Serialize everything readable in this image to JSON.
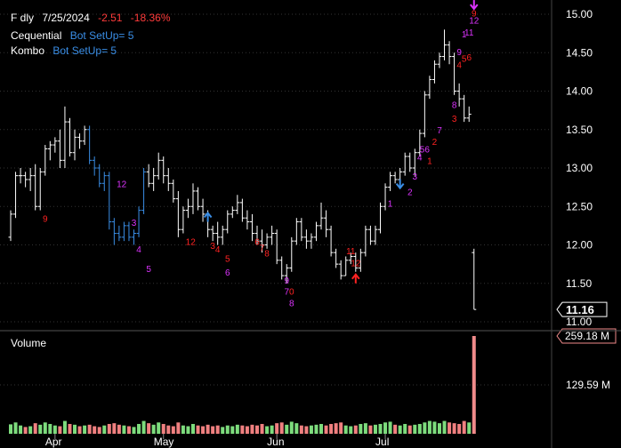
{
  "header": {
    "symbol": "F dly",
    "date": "7/25/2024",
    "change": "-2.51",
    "change_pct": "-18.36%",
    "line2_label": "Cequential",
    "line2_value": "Bot SetUp=  5",
    "line3_label": "Kombo",
    "line3_value": "Bot SetUp=  5"
  },
  "colors": {
    "background": "#000000",
    "text": "#ffffff",
    "down": "#ff3b3b",
    "indicator": "#3a8ee6",
    "magenta": "#dd33ff",
    "red_count": "#ff2222",
    "volume_up": "#7ddc7d",
    "volume_down": "#f08080",
    "volume_last": "#f08a8a"
  },
  "chart_data": {
    "type": "ohlc",
    "price_axis": {
      "ticks": [
        "15.00",
        "14.50",
        "14.00",
        "13.50",
        "13.00",
        "12.50",
        "12.00",
        "11.50",
        "11.00"
      ],
      "ylim": [
        11.0,
        15.0
      ]
    },
    "last_price_label": "11.16",
    "volume_label": "Volume",
    "volume_axis": {
      "ticks": [
        "129.59 M"
      ],
      "last_label": "259.18 M"
    },
    "x_labels": [
      "Apr",
      "May",
      "Jun",
      "Jul"
    ],
    "bars": [
      [
        12.1,
        12.45,
        12.05,
        12.4
      ],
      [
        12.4,
        12.95,
        12.35,
        12.9
      ],
      [
        12.9,
        13.0,
        12.8,
        12.9
      ],
      [
        12.9,
        12.95,
        12.75,
        12.85
      ],
      [
        12.85,
        13.0,
        12.7,
        12.9
      ],
      [
        12.9,
        13.05,
        12.45,
        12.5
      ],
      [
        12.5,
        13.0,
        12.45,
        12.95
      ],
      [
        12.95,
        13.3,
        12.9,
        13.25
      ],
      [
        13.25,
        13.35,
        13.1,
        13.3
      ],
      [
        13.3,
        13.4,
        13.2,
        13.35
      ],
      [
        13.35,
        13.5,
        13.0,
        13.1
      ],
      [
        13.1,
        13.8,
        13.0,
        13.6
      ],
      [
        13.6,
        13.65,
        13.15,
        13.2
      ],
      [
        13.2,
        13.5,
        13.1,
        13.4
      ],
      [
        13.4,
        13.45,
        13.25,
        13.35
      ],
      [
        13.35,
        13.55,
        13.3,
        13.5
      ],
      [
        13.5,
        13.55,
        13.05,
        13.1
      ],
      [
        13.1,
        13.15,
        12.9,
        13.0
      ],
      [
        13.0,
        13.05,
        12.75,
        12.8
      ],
      [
        12.8,
        12.95,
        12.7,
        12.9
      ],
      [
        12.9,
        12.95,
        12.2,
        12.3
      ],
      [
        12.3,
        12.35,
        12.0,
        12.15
      ],
      [
        12.15,
        12.25,
        12.05,
        12.1
      ],
      [
        12.1,
        12.3,
        12.05,
        12.25
      ],
      [
        12.25,
        12.3,
        12.05,
        12.1
      ],
      [
        12.1,
        12.2,
        12.0,
        12.15
      ],
      [
        12.15,
        12.5,
        12.1,
        12.45
      ],
      [
        12.45,
        13.0,
        12.4,
        12.95
      ],
      [
        12.95,
        13.05,
        12.75,
        12.8
      ],
      [
        12.8,
        13.0,
        12.7,
        12.9
      ],
      [
        12.9,
        13.2,
        12.85,
        13.1
      ],
      [
        13.1,
        13.15,
        12.8,
        12.9
      ],
      [
        12.9,
        13.0,
        12.7,
        12.8
      ],
      [
        12.8,
        12.85,
        12.55,
        12.6
      ],
      [
        12.6,
        12.7,
        12.1,
        12.2
      ],
      [
        12.2,
        12.5,
        12.15,
        12.45
      ],
      [
        12.45,
        12.6,
        12.35,
        12.5
      ],
      [
        12.5,
        12.8,
        12.4,
        12.7
      ],
      [
        12.7,
        12.75,
        12.45,
        12.5
      ],
      [
        12.5,
        12.6,
        12.3,
        12.4
      ],
      [
        12.4,
        12.45,
        12.1,
        12.2
      ],
      [
        12.2,
        12.25,
        12.05,
        12.15
      ],
      [
        12.15,
        12.3,
        12.0,
        12.1
      ],
      [
        12.1,
        12.25,
        12.0,
        12.2
      ],
      [
        12.2,
        12.45,
        12.15,
        12.4
      ],
      [
        12.4,
        12.5,
        12.35,
        12.45
      ],
      [
        12.45,
        12.65,
        12.4,
        12.55
      ],
      [
        12.55,
        12.6,
        12.3,
        12.35
      ],
      [
        12.35,
        12.45,
        12.2,
        12.3
      ],
      [
        12.3,
        12.4,
        12.05,
        12.15
      ],
      [
        12.15,
        12.25,
        12.0,
        12.05
      ],
      [
        12.05,
        12.2,
        11.9,
        12.0
      ],
      [
        12.0,
        12.15,
        11.95,
        12.1
      ],
      [
        12.1,
        12.25,
        12.0,
        12.15
      ],
      [
        12.15,
        12.2,
        11.75,
        11.8
      ],
      [
        11.8,
        11.85,
        11.55,
        11.6
      ],
      [
        11.6,
        11.75,
        11.5,
        11.7
      ],
      [
        11.7,
        12.1,
        11.65,
        12.05
      ],
      [
        12.05,
        12.35,
        12.0,
        12.3
      ],
      [
        12.3,
        12.35,
        12.05,
        12.1
      ],
      [
        12.1,
        12.2,
        11.95,
        12.05
      ],
      [
        12.05,
        12.15,
        11.95,
        12.1
      ],
      [
        12.1,
        12.3,
        12.05,
        12.25
      ],
      [
        12.25,
        12.55,
        12.2,
        12.35
      ],
      [
        12.35,
        12.45,
        12.1,
        12.2
      ],
      [
        12.2,
        12.25,
        11.85,
        11.9
      ],
      [
        11.9,
        11.95,
        11.7,
        11.75
      ],
      [
        11.75,
        11.8,
        11.55,
        11.6
      ],
      [
        11.6,
        11.85,
        11.6,
        11.8
      ],
      [
        11.8,
        11.9,
        11.75,
        11.85
      ],
      [
        11.85,
        11.9,
        11.65,
        11.7
      ],
      [
        11.7,
        11.95,
        11.65,
        11.9
      ],
      [
        11.9,
        12.25,
        11.85,
        12.2
      ],
      [
        12.2,
        12.25,
        12.0,
        12.05
      ],
      [
        12.05,
        12.25,
        12.0,
        12.2
      ],
      [
        12.2,
        12.55,
        12.15,
        12.5
      ],
      [
        12.5,
        12.8,
        12.45,
        12.75
      ],
      [
        12.75,
        12.95,
        12.7,
        12.9
      ],
      [
        12.9,
        12.95,
        12.8,
        12.85
      ],
      [
        12.85,
        13.0,
        12.8,
        12.95
      ],
      [
        12.95,
        13.2,
        12.9,
        13.15
      ],
      [
        13.15,
        13.2,
        12.95,
        13.0
      ],
      [
        13.0,
        13.25,
        12.9,
        13.2
      ],
      [
        13.2,
        13.5,
        13.15,
        13.45
      ],
      [
        13.45,
        14.0,
        13.4,
        13.95
      ],
      [
        13.95,
        14.2,
        13.9,
        14.15
      ],
      [
        14.15,
        14.4,
        14.1,
        14.35
      ],
      [
        14.35,
        14.5,
        14.3,
        14.45
      ],
      [
        14.45,
        14.8,
        14.4,
        14.6
      ],
      [
        14.6,
        14.65,
        14.35,
        14.45
      ],
      [
        14.45,
        14.5,
        13.95,
        14.0
      ],
      [
        14.0,
        14.1,
        13.8,
        13.9
      ],
      [
        13.9,
        13.95,
        13.6,
        13.65
      ],
      [
        13.65,
        13.8,
        13.6,
        13.7
      ],
      [
        11.9,
        11.95,
        11.16,
        11.16
      ]
    ],
    "volume_values_m": [
      25,
      30,
      22,
      18,
      20,
      28,
      24,
      30,
      26,
      22,
      20,
      34,
      26,
      24,
      20,
      22,
      24,
      20,
      18,
      22,
      26,
      28,
      24,
      22,
      20,
      18,
      26,
      34,
      28,
      24,
      30,
      26,
      22,
      20,
      30,
      22,
      20,
      26,
      22,
      20,
      24,
      20,
      22,
      18,
      22,
      20,
      24,
      22,
      20,
      24,
      22,
      26,
      20,
      22,
      28,
      30,
      24,
      32,
      28,
      22,
      20,
      22,
      24,
      26,
      22,
      26,
      28,
      30,
      22,
      20,
      22,
      26,
      28,
      22,
      24,
      26,
      30,
      32,
      24,
      22,
      26,
      22,
      24,
      26,
      30,
      34,
      32,
      28,
      34,
      30,
      28,
      26,
      34,
      30,
      259.18
    ],
    "annotations": [
      {
        "bar": 7,
        "price": 12.3,
        "text": "9",
        "color": "red"
      },
      {
        "bar": 22,
        "price": 12.75,
        "text": "1",
        "color": "magenta"
      },
      {
        "bar": 23,
        "price": 12.75,
        "text": "2",
        "color": "magenta"
      },
      {
        "bar": 25,
        "price": 12.25,
        "text": "3",
        "color": "magenta"
      },
      {
        "bar": 26,
        "price": 11.9,
        "text": "4",
        "color": "magenta"
      },
      {
        "bar": 28,
        "price": 11.65,
        "text": "5",
        "color": "magenta"
      },
      {
        "bar": 36,
        "price": 12.0,
        "text": "1",
        "color": "red"
      },
      {
        "bar": 37,
        "price": 12.0,
        "text": "2",
        "color": "red"
      },
      {
        "bar": 41,
        "price": 11.95,
        "text": "3",
        "color": "red"
      },
      {
        "bar": 42,
        "price": 11.9,
        "text": "4",
        "color": "red"
      },
      {
        "bar": 44,
        "price": 11.78,
        "text": "5",
        "color": "red"
      },
      {
        "bar": 44,
        "price": 11.6,
        "text": "6",
        "color": "magenta"
      },
      {
        "bar": 50,
        "price": 12.0,
        "text": "6",
        "color": "red"
      },
      {
        "bar": 51,
        "price": 11.92,
        "text": "7",
        "color": "red"
      },
      {
        "bar": 52,
        "price": 11.85,
        "text": "8",
        "color": "red"
      },
      {
        "bar": 56,
        "price": 11.5,
        "text": "9",
        "color": "magenta"
      },
      {
        "bar": 56,
        "price": 11.35,
        "text": "7",
        "color": "magenta"
      },
      {
        "bar": 57,
        "price": 11.35,
        "text": "0",
        "color": "red"
      },
      {
        "bar": 57,
        "price": 11.2,
        "text": "8",
        "color": "magenta"
      },
      {
        "bar": 69,
        "price": 11.88,
        "text": "11",
        "color": "red"
      },
      {
        "bar": 70,
        "price": 11.72,
        "text": "12",
        "color": "red"
      },
      {
        "bar": 77,
        "price": 12.5,
        "text": "1",
        "color": "magenta"
      },
      {
        "bar": 81,
        "price": 12.65,
        "text": "2",
        "color": "magenta"
      },
      {
        "bar": 82,
        "price": 12.85,
        "text": "3",
        "color": "magenta"
      },
      {
        "bar": 83,
        "price": 13.1,
        "text": "4",
        "color": "magenta"
      },
      {
        "bar": 84,
        "price": 13.2,
        "text": "56",
        "color": "magenta"
      },
      {
        "bar": 85,
        "price": 13.05,
        "text": "1",
        "color": "red"
      },
      {
        "bar": 86,
        "price": 13.3,
        "text": "2",
        "color": "red"
      },
      {
        "bar": 87,
        "price": 13.45,
        "text": "7",
        "color": "magenta"
      },
      {
        "bar": 90,
        "price": 13.6,
        "text": "3",
        "color": "red"
      },
      {
        "bar": 90,
        "price": 13.78,
        "text": "8",
        "color": "magenta"
      },
      {
        "bar": 91,
        "price": 14.3,
        "text": "4",
        "color": "red"
      },
      {
        "bar": 91,
        "price": 14.47,
        "text": "9",
        "color": "magenta"
      },
      {
        "bar": 92,
        "price": 14.38,
        "text": "5",
        "color": "red"
      },
      {
        "bar": 93,
        "price": 14.4,
        "text": "6",
        "color": "red"
      },
      {
        "bar": 92,
        "price": 14.7,
        "text": "1",
        "color": "magenta"
      },
      {
        "bar": 93,
        "price": 14.72,
        "text": "11",
        "color": "magenta"
      },
      {
        "bar": 94,
        "price": 14.88,
        "text": "12",
        "color": "magenta"
      },
      {
        "bar": 94,
        "price": 14.97,
        "text": "9",
        "color": "red"
      }
    ],
    "arrows": [
      {
        "bar": 40,
        "price": 12.3,
        "dir": "up",
        "color": "indicator"
      },
      {
        "bar": 79,
        "price": 12.75,
        "dir": "down",
        "color": "indicator"
      },
      {
        "bar": 70,
        "price": 11.5,
        "dir": "up",
        "color": "red"
      },
      {
        "bar": 94,
        "price": 15.08,
        "dir": "down",
        "color": "magenta"
      }
    ]
  }
}
